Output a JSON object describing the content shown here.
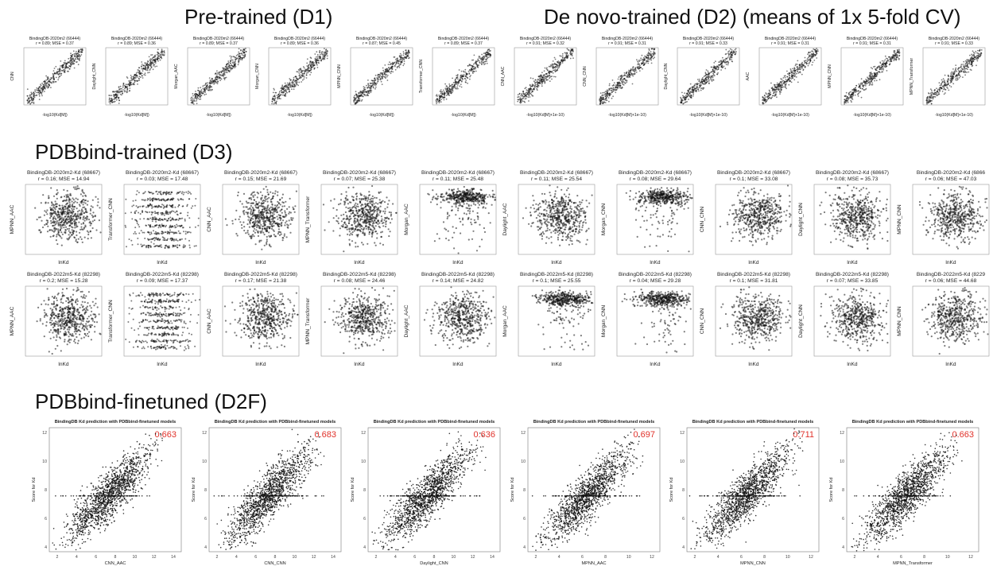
{
  "sections": {
    "d1": "Pre-trained (D1)",
    "d2": "De novo-trained (D2) (means of 1x 5-fold CV)",
    "d3": "PDBbind-trained (D3)",
    "d2f": "PDBbind-finetuned (D2F)"
  },
  "colors": {
    "ink": "#111111",
    "accent": "#e0312a"
  },
  "chart_data": [
    {
      "type": "scatter",
      "group": "D1",
      "title": "BindingDB-2020m2 (66444)",
      "subtitle": "r = 0.89; MSE = 0.37",
      "xlabel": "-log10(Kd[M])",
      "ylabel": "CNN",
      "shape": "line"
    },
    {
      "type": "scatter",
      "group": "D1",
      "title": "BindingDB-2020m2 (66444)",
      "subtitle": "r = 0.89; MSE = 0.36",
      "xlabel": "-log10(Kd[M])",
      "ylabel": "Daylight_CNN",
      "shape": "line"
    },
    {
      "type": "scatter",
      "group": "D1",
      "title": "BindingDB-2020m2 (66444)",
      "subtitle": "r = 0.89; MSE = 0.37",
      "xlabel": "-log10(Kd[M])",
      "ylabel": "Morgan_AAC",
      "shape": "line"
    },
    {
      "type": "scatter",
      "group": "D1",
      "title": "BindingDB-2020m2 (66444)",
      "subtitle": "r = 0.89; MSE = 0.36",
      "xlabel": "-log10(Kd[M])",
      "ylabel": "Morgan_CNN",
      "shape": "line"
    },
    {
      "type": "scatter",
      "group": "D1",
      "title": "BindingDB-2020m2 (66444)",
      "subtitle": "r = 0.87; MSE = 0.45",
      "xlabel": "-log10(Kd[M])",
      "ylabel": "MPNN_CNN",
      "shape": "line"
    },
    {
      "type": "scatter",
      "group": "D1",
      "title": "BindingDB-2020m2 (66444)",
      "subtitle": "r = 0.89; MSE = 0.37",
      "xlabel": "-log10(Kd[M])",
      "ylabel": "Transformer_CNN",
      "shape": "line"
    },
    {
      "type": "scatter",
      "group": "D2",
      "title": "BindingDB-2020m2 (66444)",
      "subtitle": "r = 0.91; MSE = 0.32",
      "xlabel": "-log10(Kd[M]+1e-10)",
      "ylabel": "CNN_AAC",
      "shape": "line"
    },
    {
      "type": "scatter",
      "group": "D2",
      "title": "BindingDB-2020m2 (66444)",
      "subtitle": "r = 0.91; MSE = 0.31",
      "xlabel": "-log10(Kd[M]+1e-10)",
      "ylabel": "CNN_CNN",
      "shape": "line"
    },
    {
      "type": "scatter",
      "group": "D2",
      "title": "BindingDB-2020m2 (66444)",
      "subtitle": "r = 0.91; MSE = 0.33",
      "xlabel": "-log10(Kd[M]+1e-10)",
      "ylabel": "Daylight_CNN",
      "shape": "line"
    },
    {
      "type": "scatter",
      "group": "D2",
      "title": "BindingDB-2020m2 (66444)",
      "subtitle": "r = 0.91; MSE = 0.31",
      "xlabel": "-log10(Kd[M]+1e-10)",
      "ylabel": "AAC",
      "shape": "line"
    },
    {
      "type": "scatter",
      "group": "D2",
      "title": "BindingDB-2020m2 (66444)",
      "subtitle": "r = 0.91; MSE = 0.31",
      "xlabel": "-log10(Kd[M]+1e-10)",
      "ylabel": "MPNN_CNN",
      "shape": "line"
    },
    {
      "type": "scatter",
      "group": "D2",
      "title": "BindingDB-2020m2 (66444)",
      "subtitle": "r = 0.91; MSE = 0.33",
      "xlabel": "-log10(Kd[M]+1e-10)",
      "ylabel": "MPNN_Transformer",
      "shape": "line"
    },
    {
      "type": "scatter",
      "group": "D3",
      "title": "BindingDB-2020m2-Kd (68667)",
      "subtitle": "r = 0.16; MSE = 14.94",
      "xlabel": "lnKd",
      "ylabel": "MPNN_AAC",
      "shape": "blob"
    },
    {
      "type": "scatter",
      "group": "D3",
      "title": "BindingDB-2020m2-Kd (68667)",
      "subtitle": "r = 0.03; MSE = 17.48",
      "xlabel": "lnKd",
      "ylabel": "Transformer_CNN",
      "shape": "bands"
    },
    {
      "type": "scatter",
      "group": "D3",
      "title": "BindingDB-2020m2-Kd (68667)",
      "subtitle": "r = 0.15; MSE = 21.69",
      "xlabel": "lnKd",
      "ylabel": "CNN_AAC",
      "shape": "blob"
    },
    {
      "type": "scatter",
      "group": "D3",
      "title": "BindingDB-2020m2-Kd (68667)",
      "subtitle": "r = 0.07; MSE = 25.38",
      "xlabel": "lnKd",
      "ylabel": "MPNN_Transformer",
      "shape": "blob"
    },
    {
      "type": "scatter",
      "group": "D3",
      "title": "BindingDB-2020m2-Kd (68667)",
      "subtitle": "r = 0.11; MSE = 25.48",
      "xlabel": "lnKd",
      "ylabel": "Morgan_AAC",
      "shape": "top"
    },
    {
      "type": "scatter",
      "group": "D3",
      "title": "BindingDB-2020m2-Kd (68667)",
      "subtitle": "r = 0.11; MSE = 25.54",
      "xlabel": "lnKd",
      "ylabel": "Daylight_AAC",
      "shape": "blob"
    },
    {
      "type": "scatter",
      "group": "D3",
      "title": "BindingDB-2020m2-Kd (68667)",
      "subtitle": "r = 0.08; MSE = 29.64",
      "xlabel": "lnKd",
      "ylabel": "Morgan_CNN",
      "shape": "top"
    },
    {
      "type": "scatter",
      "group": "D3",
      "title": "BindingDB-2020m2-Kd (68667)",
      "subtitle": "r = 0.1; MSE = 33.08",
      "xlabel": "lnKd",
      "ylabel": "CNN_CNN",
      "shape": "blob"
    },
    {
      "type": "scatter",
      "group": "D3",
      "title": "BindingDB-2020m2-Kd (68667)",
      "subtitle": "r = 0.08; MSE = 35.73",
      "xlabel": "lnKd",
      "ylabel": "Daylight_CNN",
      "shape": "blob"
    },
    {
      "type": "scatter",
      "group": "D3",
      "title": "BindingDB-2020m2-Kd (6866",
      "subtitle": "r = 0.06; MSE = 47.03",
      "xlabel": "lnKd",
      "ylabel": "MPNN_CNN",
      "shape": "blob"
    },
    {
      "type": "scatter",
      "group": "D3",
      "title": "BindingDB-2022m5-Kd (82298)",
      "subtitle": "r = 0.2; MSE = 15.28",
      "xlabel": "lnKd",
      "ylabel": "MPNN_AAC",
      "shape": "blob"
    },
    {
      "type": "scatter",
      "group": "D3",
      "title": "BindingDB-2022m5-Kd (82298)",
      "subtitle": "r = 0.09; MSE = 17.37",
      "xlabel": "lnKd",
      "ylabel": "Transformer_CNN",
      "shape": "bands"
    },
    {
      "type": "scatter",
      "group": "D3",
      "title": "BindingDB-2022m5-Kd (82298)",
      "subtitle": "r = 0.17; MSE = 21.38",
      "xlabel": "lnKd",
      "ylabel": "CNN_AAC",
      "shape": "blob"
    },
    {
      "type": "scatter",
      "group": "D3",
      "title": "BindingDB-2022m5-Kd (82298)",
      "subtitle": "r = 0.08; MSE = 24.46",
      "xlabel": "lnKd",
      "ylabel": "MPNN_Transformer",
      "shape": "blob"
    },
    {
      "type": "scatter",
      "group": "D3",
      "title": "BindingDB-2022m5-Kd (82298)",
      "subtitle": "r = 0.14; MSE = 24.82",
      "xlabel": "lnKd",
      "ylabel": "Daylight_AAC",
      "shape": "blob"
    },
    {
      "type": "scatter",
      "group": "D3",
      "title": "BindingDB-2022m5-Kd (82298)",
      "subtitle": "r = 0.1; MSE = 25.55",
      "xlabel": "lnKd",
      "ylabel": "Morgan_AAC",
      "shape": "top"
    },
    {
      "type": "scatter",
      "group": "D3",
      "title": "BindingDB-2022m5-Kd (82298)",
      "subtitle": "r = 0.04; MSE = 29.28",
      "xlabel": "lnKd",
      "ylabel": "Morgan_CNN",
      "shape": "top"
    },
    {
      "type": "scatter",
      "group": "D3",
      "title": "BindingDB-2022m5-Kd (82298)",
      "subtitle": "r = 0.1; MSE = 31.81",
      "xlabel": "lnKd",
      "ylabel": "CNN_CNN",
      "shape": "blob"
    },
    {
      "type": "scatter",
      "group": "D3",
      "title": "BindingDB-2022m5-Kd (82298)",
      "subtitle": "r = 0.07; MSE = 33.85",
      "xlabel": "lnKd",
      "ylabel": "Daylight_CNN",
      "shape": "blob"
    },
    {
      "type": "scatter",
      "group": "D3",
      "title": "BindingDB-2022m5-Kd (8229",
      "subtitle": "r = 0.06; MSE = 44.68",
      "xlabel": "lnKd",
      "ylabel": "MPNN_CNN",
      "shape": "blob"
    },
    {
      "type": "scatter",
      "group": "D2F",
      "title": "BindingDB Kd prediction with PDBbind-finetuned models",
      "subtitle": "",
      "xlabel": "CNN_AAC",
      "ylabel": "Score for Kd",
      "r": "0.663",
      "shape": "ft",
      "xticks": [
        "2",
        "4",
        "6",
        "8",
        "10",
        "12",
        "14"
      ],
      "yticks": [
        "12",
        "10",
        "8",
        "6",
        "4"
      ]
    },
    {
      "type": "scatter",
      "group": "D2F",
      "title": "BindingDB Kd prediction with PDBbind-finetuned models",
      "subtitle": "",
      "xlabel": "CNN_CNN",
      "ylabel": "Score for Kd",
      "r": "0.683",
      "shape": "ft",
      "xticks": [
        "2",
        "4",
        "6",
        "8",
        "10",
        "12",
        "14"
      ],
      "yticks": [
        "12",
        "10",
        "8",
        "6",
        "4"
      ]
    },
    {
      "type": "scatter",
      "group": "D2F",
      "title": "BindingDB Kd prediction with PDBbind-finetuned models",
      "subtitle": "",
      "xlabel": "Daylight_CNN",
      "ylabel": "Score for Kd",
      "r": "0.636",
      "shape": "ft",
      "xticks": [
        "2",
        "4",
        "6",
        "8",
        "10",
        "12",
        "14"
      ],
      "yticks": [
        "12",
        "10",
        "8",
        "6",
        "4"
      ]
    },
    {
      "type": "scatter",
      "group": "D2F",
      "title": "BindingDB Kd prediction with PDBbind-finetuned models",
      "subtitle": "",
      "xlabel": "MPNN_AAC",
      "ylabel": "Score for Kd",
      "r": "0.697",
      "shape": "ft",
      "xticks": [
        "2",
        "4",
        "6",
        "8",
        "10",
        "12"
      ],
      "yticks": [
        "12",
        "10",
        "8",
        "6",
        "4"
      ]
    },
    {
      "type": "scatter",
      "group": "D2F",
      "title": "BindingDB Kd prediction with PDBbind-finetuned models",
      "subtitle": "",
      "xlabel": "MPNN_CNN",
      "ylabel": "Score for Kd",
      "r": "0.711",
      "shape": "ft",
      "xticks": [
        "2",
        "4",
        "6",
        "8",
        "10",
        "12"
      ],
      "yticks": [
        "12",
        "10",
        "8",
        "6",
        "4"
      ]
    },
    {
      "type": "scatter",
      "group": "D2F",
      "title": "BindingDB Kd prediction with PDBbind-finetuned models",
      "subtitle": "",
      "xlabel": "MPNN_Transformer",
      "ylabel": "Score for Kd",
      "r": "0.663",
      "shape": "ft",
      "xticks": [
        "2",
        "4",
        "6",
        "8",
        "10",
        "12"
      ],
      "yticks": [
        "12",
        "10",
        "8",
        "6",
        "4"
      ]
    }
  ]
}
